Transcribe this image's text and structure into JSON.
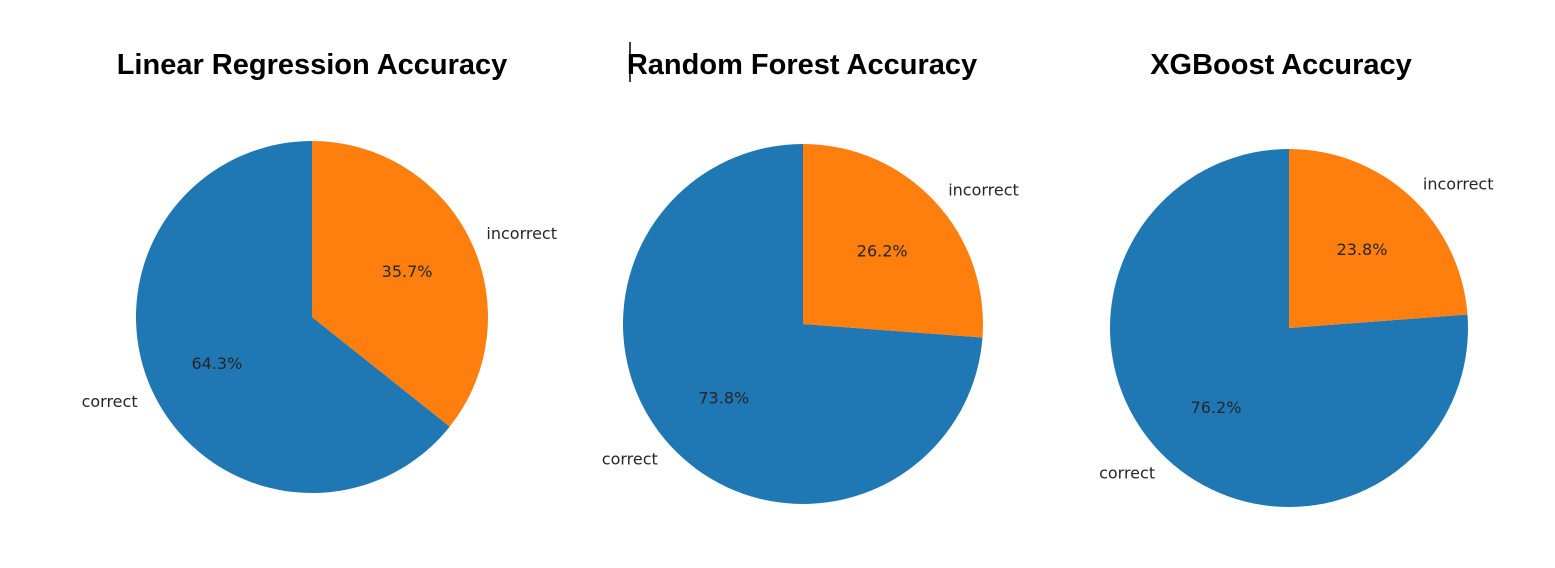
{
  "chart_data": [
    {
      "type": "pie",
      "title": "Linear Regression Accuracy",
      "labels": [
        "correct",
        "incorrect"
      ],
      "values": [
        64.3,
        35.7
      ],
      "value_labels": [
        "64.3%",
        "35.7%"
      ],
      "colors": [
        "#1f77b4",
        "#ff7f0e"
      ],
      "start_angle": 90,
      "direction": "counterclockwise"
    },
    {
      "type": "pie",
      "title": "Random Forest Accuracy",
      "labels": [
        "correct",
        "incorrect"
      ],
      "values": [
        73.8,
        26.2
      ],
      "value_labels": [
        "73.8%",
        "26.2%"
      ],
      "colors": [
        "#1f77b4",
        "#ff7f0e"
      ],
      "start_angle": 90,
      "direction": "counterclockwise"
    },
    {
      "type": "pie",
      "title": "XGBoost Accuracy",
      "labels": [
        "correct",
        "incorrect"
      ],
      "values": [
        76.2,
        23.8
      ],
      "value_labels": [
        "76.2%",
        "23.8%"
      ],
      "colors": [
        "#1f77b4",
        "#ff7f0e"
      ],
      "start_angle": 90,
      "direction": "counterclockwise"
    }
  ]
}
